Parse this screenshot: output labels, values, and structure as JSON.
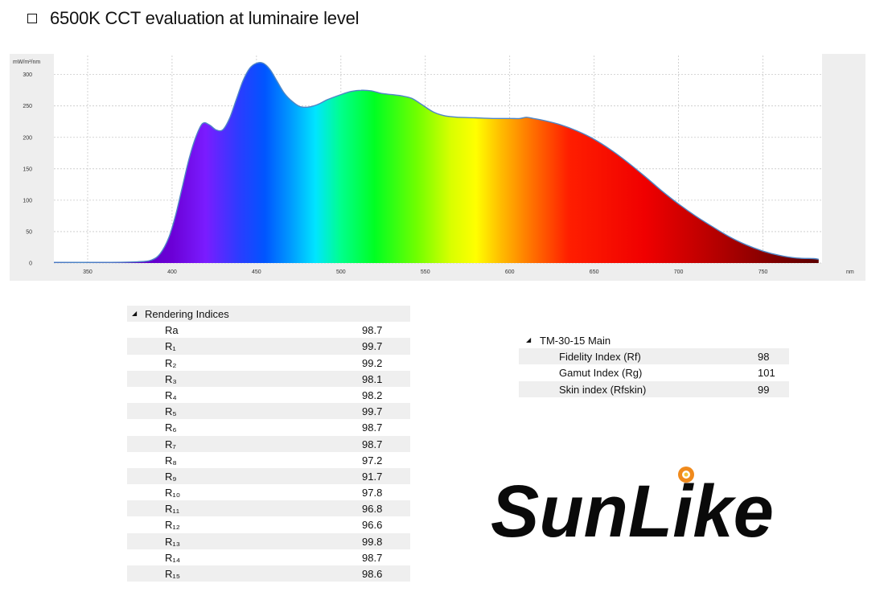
{
  "heading": {
    "title": "6500K CCT evaluation at luminaire level"
  },
  "chart_data": {
    "type": "area",
    "title": "",
    "ylabel": "mW/m²/nm",
    "xlabel": "nm",
    "xlim": [
      330,
      785
    ],
    "ylim": [
      0,
      320
    ],
    "x_ticks": [
      350,
      400,
      450,
      500,
      550,
      600,
      650,
      700,
      750
    ],
    "y_ticks": [
      0,
      50,
      100,
      150,
      200,
      250,
      300
    ],
    "grid": true,
    "fill": "visible-spectrum rainbow gradient",
    "line_color": "#4f86c6",
    "series": [
      {
        "x": [
          330,
          360,
          380,
          388,
          393,
          398,
          402,
          406,
          410,
          414,
          418,
          422,
          426,
          430,
          434,
          438,
          442,
          446,
          450,
          454,
          458,
          462,
          466,
          470,
          475,
          480,
          486,
          492,
          500,
          506,
          512,
          518,
          524,
          530,
          536,
          542,
          548,
          555,
          562,
          570,
          580,
          590,
          600,
          606,
          610,
          614,
          620,
          630,
          640,
          650,
          660,
          670,
          680,
          690,
          700,
          710,
          720,
          730,
          740,
          750,
          760,
          770,
          780,
          783
        ],
        "values": [
          1,
          1,
          2,
          5,
          15,
          40,
          75,
          120,
          165,
          200,
          222,
          220,
          212,
          212,
          230,
          260,
          290,
          310,
          318,
          318,
          308,
          290,
          272,
          260,
          250,
          248,
          252,
          260,
          268,
          273,
          275,
          274,
          270,
          268,
          266,
          262,
          252,
          240,
          234,
          232,
          231,
          230,
          230,
          230,
          232,
          230,
          227,
          220,
          210,
          197,
          180,
          160,
          138,
          115,
          94,
          75,
          58,
          42,
          29,
          19,
          12,
          8,
          7,
          6
        ]
      }
    ]
  },
  "rendering_indices": {
    "header": "Rendering Indices",
    "rows": [
      {
        "name": "Ra",
        "value": "98.7"
      },
      {
        "name": "R₁",
        "value": "99.7"
      },
      {
        "name": "R₂",
        "value": "99.2"
      },
      {
        "name": "R₃",
        "value": "98.1"
      },
      {
        "name": "R₄",
        "value": "98.2"
      },
      {
        "name": "R₅",
        "value": "99.7"
      },
      {
        "name": "R₆",
        "value": "98.7"
      },
      {
        "name": "R₇",
        "value": "98.7"
      },
      {
        "name": "R₈",
        "value": "97.2"
      },
      {
        "name": "R₉",
        "value": "91.7"
      },
      {
        "name": "R₁₀",
        "value": "97.8"
      },
      {
        "name": "R₁₁",
        "value": "96.8"
      },
      {
        "name": "R₁₂",
        "value": "96.6"
      },
      {
        "name": "R₁₃",
        "value": "99.8"
      },
      {
        "name": "R₁₄",
        "value": "98.7"
      },
      {
        "name": "R₁₅",
        "value": "98.6"
      }
    ]
  },
  "tm30": {
    "header": "TM-30-15 Main",
    "rows": [
      {
        "name": "Fidelity Index (Rf)",
        "value": "98"
      },
      {
        "name": "Gamut Index (Rg)",
        "value": "101"
      },
      {
        "name": "Skin index (Rfskin)",
        "value": "99"
      }
    ]
  },
  "logo": {
    "text": "SunLike",
    "sun_color": "#f08a1c"
  },
  "icons": {
    "heading_bullet": "checkbox-icon",
    "collapse": "triangle-down-icon"
  }
}
